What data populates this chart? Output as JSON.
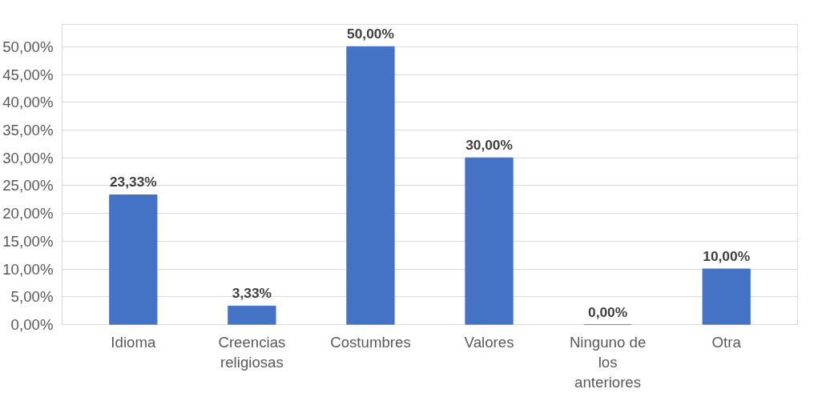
{
  "chart_data": {
    "type": "bar",
    "categories": [
      "Idioma",
      "Creencias religiosas",
      "Costumbres",
      "Valores",
      "Ninguno de los anteriores",
      "Otra"
    ],
    "values": [
      23.33,
      3.33,
      50,
      30,
      0,
      10
    ],
    "value_labels": [
      "23,33%",
      "3,33%",
      "50,00%",
      "30,00%",
      "0,00%",
      "10,00%"
    ],
    "color": "#4472c4",
    "ylim": [
      0,
      50
    ],
    "yticks": [
      {
        "value": 0,
        "label": "0,00%"
      },
      {
        "value": 5,
        "label": "5,00%"
      },
      {
        "value": 10,
        "label": "10,00%"
      },
      {
        "value": 15,
        "label": "15,00%"
      },
      {
        "value": 20,
        "label": "20,00%"
      },
      {
        "value": 25,
        "label": "25,00%"
      },
      {
        "value": 30,
        "label": "30,00%"
      },
      {
        "value": 35,
        "label": "35,00%"
      },
      {
        "value": 40,
        "label": "40,00%"
      },
      {
        "value": 45,
        "label": "45,00%"
      },
      {
        "value": 50,
        "label": "50,00%"
      }
    ],
    "grid": "y"
  }
}
